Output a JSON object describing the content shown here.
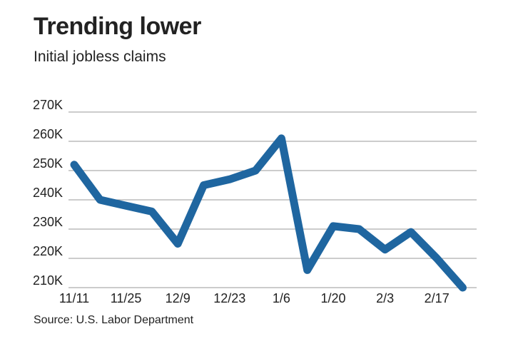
{
  "header": {
    "title": "Trending lower",
    "subtitle": "Initial jobless claims"
  },
  "footer": {
    "source": "Source: U.S. Labor Department"
  },
  "colors": {
    "line": "#1f66a0",
    "grid": "#9a9a9a",
    "text": "#222222"
  },
  "chart_data": {
    "type": "line",
    "title": "Trending lower",
    "subtitle": "Initial jobless claims",
    "xlabel": "",
    "ylabel": "",
    "ylim": [
      210,
      270
    ],
    "y_ticks": [
      270,
      260,
      250,
      240,
      230,
      220,
      210
    ],
    "y_tick_labels": [
      "270K",
      "260K",
      "250K",
      "240K",
      "230K",
      "220K",
      "210K"
    ],
    "x": [
      "11/11",
      "11/18",
      "11/25",
      "12/2",
      "12/9",
      "12/16",
      "12/23",
      "12/30",
      "1/6",
      "1/13",
      "1/20",
      "1/27",
      "2/3",
      "2/10",
      "2/17",
      "2/24"
    ],
    "x_tick_labels": [
      "11/11",
      "11/25",
      "12/9",
      "12/23",
      "1/6",
      "1/20",
      "2/3",
      "2/17"
    ],
    "grid": true,
    "series": [
      {
        "values": [
          252,
          240,
          238,
          236,
          225,
          245,
          247,
          250,
          261,
          216,
          231,
          230,
          223,
          229,
          220,
          210
        ]
      }
    ]
  }
}
